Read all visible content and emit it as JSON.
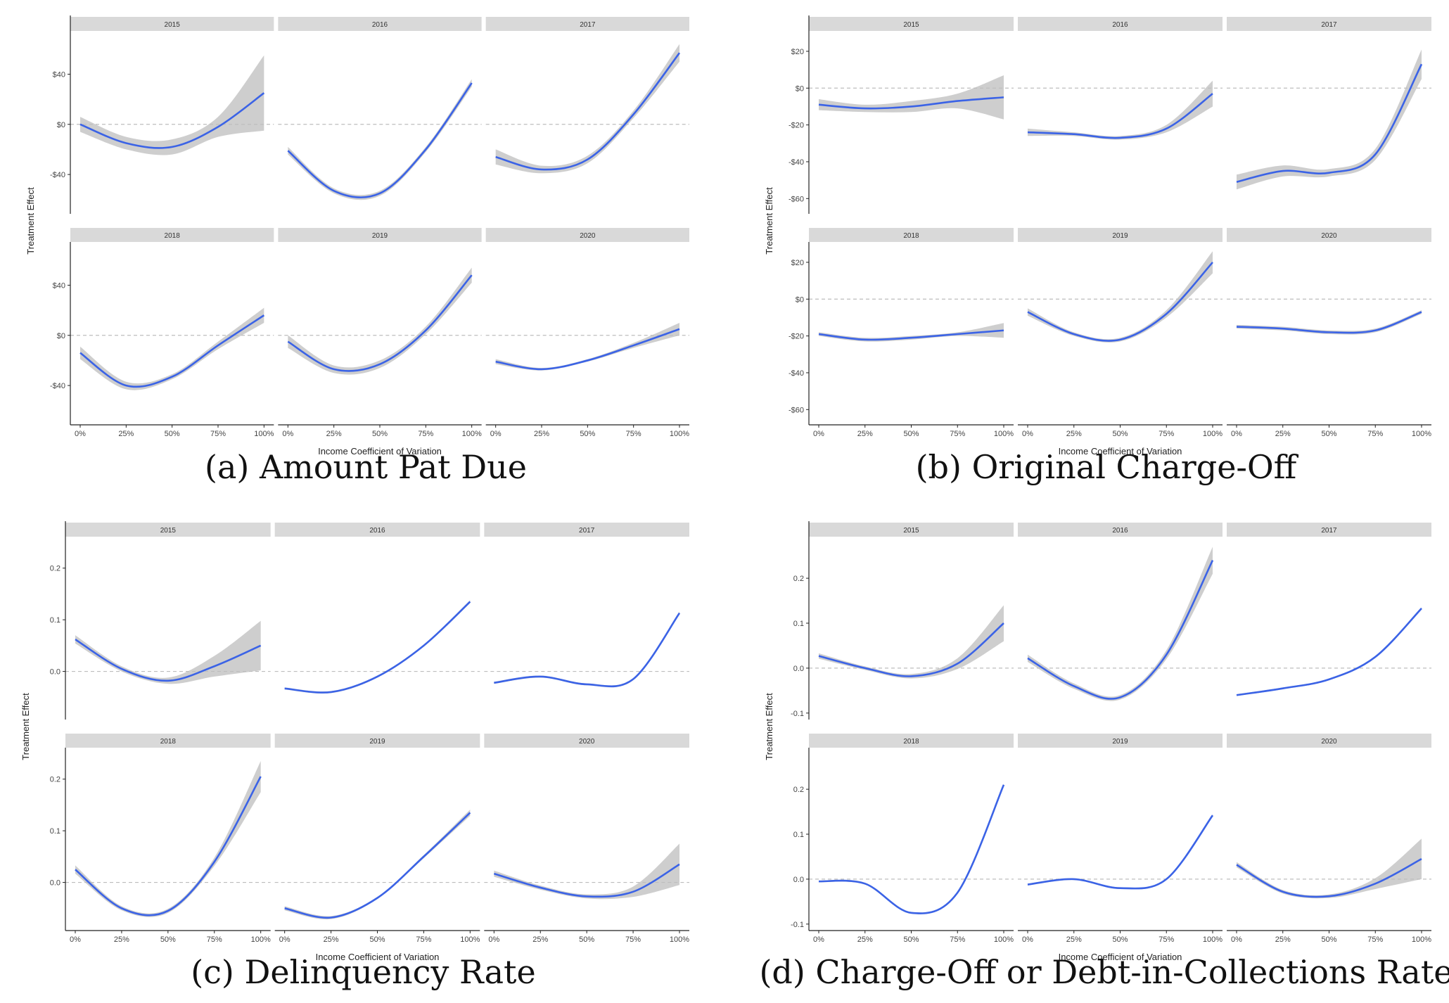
{
  "panels": [
    {
      "id": "a",
      "caption": "(a) Amount Pat Due",
      "ylabel": "Treatment Effect",
      "xlabel": "Income Coefficient of Variation",
      "yticks": [
        {
          "v": 40,
          "label": "$40"
        },
        {
          "v": 0,
          "label": "$0"
        },
        {
          "v": -40,
          "label": "-$40"
        }
      ],
      "ylim": [
        -68,
        70
      ],
      "chart_data": {
        "type": "line",
        "x_ticks": [
          "0%",
          "25%",
          "50%",
          "75%",
          "100%"
        ],
        "x": [
          0,
          0.25,
          0.5,
          0.75,
          1
        ],
        "facets": [
          {
            "year": "2015",
            "y": [
              0,
              -15,
              -18,
              -2,
              25
            ],
            "band": [
              6,
              5,
              6,
              8,
              30
            ]
          },
          {
            "year": "2016",
            "y": [
              -21,
              -53,
              -55,
              -20,
              33
            ],
            "band": [
              3,
              2,
              2,
              2,
              3
            ]
          },
          {
            "year": "2017",
            "y": [
              -26,
              -36,
              -28,
              8,
              57
            ],
            "band": [
              6,
              3,
              3,
              3,
              7
            ]
          },
          {
            "year": "2018",
            "y": [
              -14,
              -40,
              -33,
              -8,
              16
            ],
            "band": [
              5,
              3,
              2,
              3,
              6
            ]
          },
          {
            "year": "2019",
            "y": [
              -5,
              -27,
              -23,
              4,
              48
            ],
            "band": [
              5,
              3,
              3,
              3,
              6
            ]
          },
          {
            "year": "2020",
            "y": [
              -21,
              -27,
              -20,
              -8,
              5
            ],
            "band": [
              2,
              1,
              1,
              2,
              5
            ]
          }
        ]
      }
    },
    {
      "id": "b",
      "caption": "(b) Original Charge-Off",
      "ylabel": "Treatment Effect",
      "xlabel": "Income Coefficient of Variation",
      "yticks": [
        {
          "v": 20,
          "label": "$20"
        },
        {
          "v": 0,
          "label": "$0"
        },
        {
          "v": -20,
          "label": "-$20"
        },
        {
          "v": -40,
          "label": "-$40"
        },
        {
          "v": -60,
          "label": "-$60"
        }
      ],
      "ylim": [
        -66,
        28
      ],
      "chart_data": {
        "type": "line",
        "x_ticks": [
          "0%",
          "25%",
          "50%",
          "75%",
          "100%"
        ],
        "x": [
          0,
          0.25,
          0.5,
          0.75,
          1
        ],
        "facets": [
          {
            "year": "2015",
            "y": [
              -9,
              -11,
              -10,
              -7,
              -5
            ],
            "band": [
              3,
              2,
              3,
              4,
              12
            ]
          },
          {
            "year": "2016",
            "y": [
              -24,
              -25,
              -27,
              -22,
              -3
            ],
            "band": [
              2,
              1,
              1,
              2,
              7
            ]
          },
          {
            "year": "2017",
            "y": [
              -51,
              -45,
              -46,
              -36,
              13
            ],
            "band": [
              4,
              3,
              2,
              3,
              8
            ]
          },
          {
            "year": "2018",
            "y": [
              -19,
              -22,
              -21,
              -19,
              -17
            ],
            "band": [
              1,
              1,
              1,
              1,
              4
            ]
          },
          {
            "year": "2019",
            "y": [
              -7,
              -19,
              -22,
              -8,
              20
            ],
            "band": [
              2,
              1,
              1,
              2,
              6
            ]
          },
          {
            "year": "2020",
            "y": [
              -15,
              -16,
              -18,
              -17,
              -7
            ],
            "band": [
              1,
              1,
              1,
              1,
              1
            ]
          }
        ]
      }
    },
    {
      "id": "c",
      "caption": "(c) Delinquency Rate",
      "ylabel": "Treatment Effect",
      "xlabel": "Income Coefficient of Variation",
      "yticks": [
        {
          "v": 0.2,
          "label": "0.2"
        },
        {
          "v": 0.1,
          "label": "0.1"
        },
        {
          "v": 0.0,
          "label": "0.0"
        }
      ],
      "ylim": [
        -0.085,
        0.25
      ],
      "chart_data": {
        "type": "line",
        "x_ticks": [
          "0%",
          "25%",
          "50%",
          "75%",
          "100%"
        ],
        "x": [
          0,
          0.25,
          0.5,
          0.75,
          1
        ],
        "facets": [
          {
            "year": "2015",
            "y": [
              0.062,
              0.005,
              -0.018,
              0.01,
              0.05
            ],
            "band": [
              0.008,
              0.005,
              0.006,
              0.02,
              0.048
            ]
          },
          {
            "year": "2016",
            "y": [
              -0.033,
              -0.04,
              -0.01,
              0.05,
              0.135
            ],
            "band": [
              0.002,
              0.002,
              0.002,
              0.002,
              0.003
            ]
          },
          {
            "year": "2017",
            "y": [
              -0.022,
              -0.01,
              -0.025,
              -0.015,
              0.113
            ],
            "band": [
              0.002,
              0.002,
              0.002,
              0.002,
              0.003
            ]
          },
          {
            "year": "2018",
            "y": [
              0.025,
              -0.05,
              -0.055,
              0.04,
              0.205
            ],
            "band": [
              0.008,
              0.004,
              0.004,
              0.008,
              0.03
            ]
          },
          {
            "year": "2019",
            "y": [
              -0.05,
              -0.068,
              -0.03,
              0.05,
              0.135
            ],
            "band": [
              0.004,
              0.003,
              0.002,
              0.003,
              0.006
            ]
          },
          {
            "year": "2020",
            "y": [
              0.017,
              -0.01,
              -0.027,
              -0.018,
              0.035
            ],
            "band": [
              0.006,
              0.004,
              0.004,
              0.01,
              0.04
            ]
          }
        ]
      }
    },
    {
      "id": "d",
      "caption": "(d) Charge-Off or Debt-in-Collections Rate",
      "ylabel": "Treatment Effect",
      "xlabel": "Income Coefficient of Variation",
      "yticks": [
        {
          "v": 0.2,
          "label": "0.2"
        },
        {
          "v": 0.1,
          "label": "0.1"
        },
        {
          "v": 0.0,
          "label": "0.0"
        },
        {
          "v": -0.1,
          "label": "-0.1"
        }
      ],
      "ylim": [
        -0.105,
        0.28
      ],
      "chart_data": {
        "type": "line",
        "x_ticks": [
          "0%",
          "25%",
          "50%",
          "75%",
          "100%"
        ],
        "x": [
          0,
          0.25,
          0.5,
          0.75,
          1
        ],
        "facets": [
          {
            "year": "2015",
            "y": [
              0.027,
              0.0,
              -0.018,
              0.01,
              0.1
            ],
            "band": [
              0.006,
              0.004,
              0.005,
              0.012,
              0.04
            ]
          },
          {
            "year": "2016",
            "y": [
              0.022,
              -0.04,
              -0.065,
              0.03,
              0.24
            ],
            "band": [
              0.008,
              0.006,
              0.005,
              0.01,
              0.03
            ]
          },
          {
            "year": "2017",
            "y": [
              -0.06,
              -0.045,
              -0.025,
              0.025,
              0.133
            ],
            "band": [
              0.002,
              0.002,
              0.002,
              0.002,
              0.002
            ]
          },
          {
            "year": "2018",
            "y": [
              -0.005,
              -0.01,
              -0.075,
              -0.03,
              0.21
            ],
            "band": [
              0.002,
              0.002,
              0.002,
              0.002,
              0.002
            ]
          },
          {
            "year": "2019",
            "y": [
              -0.012,
              0.0,
              -0.02,
              0.0,
              0.142
            ],
            "band": [
              0.002,
              0.002,
              0.002,
              0.002,
              0.002
            ]
          },
          {
            "year": "2020",
            "y": [
              0.032,
              -0.028,
              -0.038,
              -0.01,
              0.045
            ],
            "band": [
              0.006,
              0.004,
              0.004,
              0.012,
              0.045
            ]
          }
        ]
      }
    }
  ]
}
